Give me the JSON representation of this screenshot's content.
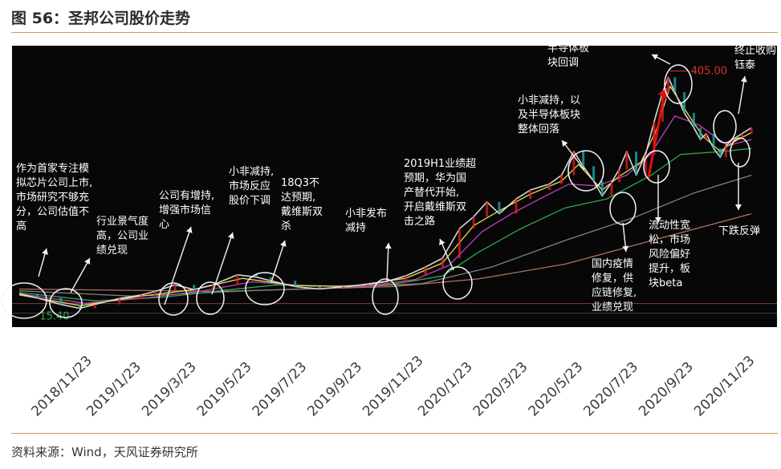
{
  "figure": {
    "title": "图 56：圣邦公司股价走势",
    "source": "资料来源：Wind，天风证券研究所"
  },
  "chart_data": {
    "type": "line",
    "title": "图 56：圣邦公司股价走势",
    "xlabel": "",
    "ylabel": "",
    "x_ticks": [
      "2018/11/23",
      "2019/1/23",
      "2019/3/23",
      "2019/5/23",
      "2019/7/23",
      "2019/9/23",
      "2019/11/23",
      "2020/1/23",
      "2020/3/23",
      "2020/5/23",
      "2020/7/23",
      "2020/9/23",
      "2020/11/23"
    ],
    "x_range": [
      "2018-11-01",
      "2020-12-31"
    ],
    "ylim": [
      0,
      430
    ],
    "price_labels": {
      "min": "15.40",
      "max": "405.00"
    },
    "series": [
      {
        "color": "#d8d8d8",
        "points": [
          [
            "2018-11-01",
            40
          ],
          [
            "2018-11-20",
            33
          ],
          [
            "2018-12-15",
            22
          ],
          [
            "2019-01-04",
            15.4
          ],
          [
            "2019-01-20",
            22
          ],
          [
            "2019-02-15",
            32
          ],
          [
            "2019-03-10",
            38
          ],
          [
            "2019-03-25",
            44
          ],
          [
            "2019-04-15",
            55
          ],
          [
            "2019-05-05",
            47
          ],
          [
            "2019-05-25",
            55
          ],
          [
            "2019-06-20",
            72
          ],
          [
            "2019-07-10",
            68
          ],
          [
            "2019-07-25",
            62
          ],
          [
            "2019-08-20",
            52
          ],
          [
            "2019-09-15",
            48
          ],
          [
            "2019-10-10",
            52
          ],
          [
            "2019-11-05",
            56
          ],
          [
            "2019-11-23",
            60
          ],
          [
            "2019-12-15",
            70
          ],
          [
            "2020-01-05",
            85
          ],
          [
            "2020-01-23",
            100
          ],
          [
            "2020-02-10",
            150
          ],
          [
            "2020-02-25",
            170
          ],
          [
            "2020-03-10",
            195
          ],
          [
            "2020-03-23",
            175
          ],
          [
            "2020-04-10",
            200
          ],
          [
            "2020-04-25",
            215
          ],
          [
            "2020-05-15",
            225
          ],
          [
            "2020-05-28",
            240
          ],
          [
            "2020-06-10",
            280
          ],
          [
            "2020-06-20",
            255
          ],
          [
            "2020-07-01",
            230
          ],
          [
            "2020-07-10",
            205
          ],
          [
            "2020-07-20",
            228
          ],
          [
            "2020-07-28",
            250
          ],
          [
            "2020-08-05",
            280
          ],
          [
            "2020-08-15",
            240
          ],
          [
            "2020-08-25",
            275
          ],
          [
            "2020-09-03",
            330
          ],
          [
            "2020-09-12",
            380
          ],
          [
            "2020-09-18",
            405
          ],
          [
            "2020-09-25",
            380
          ],
          [
            "2020-10-05",
            345
          ],
          [
            "2020-10-15",
            320
          ],
          [
            "2020-10-22",
            300
          ],
          [
            "2020-10-28",
            310
          ],
          [
            "2020-11-05",
            285
          ],
          [
            "2020-11-12",
            270
          ],
          [
            "2020-11-18",
            290
          ],
          [
            "2020-11-25",
            300
          ],
          [
            "2020-12-05",
            310
          ],
          [
            "2020-12-15",
            320
          ]
        ]
      },
      {
        "color": "#e8e04a",
        "points": [
          [
            "2018-11-01",
            38
          ],
          [
            "2019-01-05",
            20
          ],
          [
            "2019-03-10",
            36
          ],
          [
            "2019-05-05",
            47
          ],
          [
            "2019-06-25",
            66
          ],
          [
            "2019-08-20",
            54
          ],
          [
            "2019-10-15",
            52
          ],
          [
            "2019-12-15",
            66
          ],
          [
            "2020-01-23",
            92
          ],
          [
            "2020-02-25",
            155
          ],
          [
            "2020-03-23",
            180
          ],
          [
            "2020-04-25",
            208
          ],
          [
            "2020-05-28",
            230
          ],
          [
            "2020-06-15",
            258
          ],
          [
            "2020-07-10",
            215
          ],
          [
            "2020-07-28",
            238
          ],
          [
            "2020-08-20",
            262
          ],
          [
            "2020-09-05",
            315
          ],
          [
            "2020-09-20",
            390
          ],
          [
            "2020-10-10",
            340
          ],
          [
            "2020-10-25",
            305
          ],
          [
            "2020-11-12",
            280
          ],
          [
            "2020-11-25",
            295
          ],
          [
            "2020-12-15",
            312
          ]
        ]
      },
      {
        "color": "#c040c0",
        "points": [
          [
            "2018-11-01",
            40
          ],
          [
            "2019-01-10",
            24
          ],
          [
            "2019-03-15",
            33
          ],
          [
            "2019-05-15",
            45
          ],
          [
            "2019-07-05",
            60
          ],
          [
            "2019-09-05",
            53
          ],
          [
            "2019-11-05",
            53
          ],
          [
            "2019-12-25",
            64
          ],
          [
            "2020-01-30",
            88
          ],
          [
            "2020-03-05",
            145
          ],
          [
            "2020-04-05",
            175
          ],
          [
            "2020-05-05",
            200
          ],
          [
            "2020-06-05",
            225
          ],
          [
            "2020-07-05",
            222
          ],
          [
            "2020-08-05",
            240
          ],
          [
            "2020-08-30",
            275
          ],
          [
            "2020-09-25",
            340
          ],
          [
            "2020-10-20",
            325
          ],
          [
            "2020-11-20",
            290
          ],
          [
            "2020-12-15",
            300
          ]
        ]
      },
      {
        "color": "#2ea84a",
        "points": [
          [
            "2018-11-01",
            42
          ],
          [
            "2019-01-20",
            28
          ],
          [
            "2019-04-01",
            34
          ],
          [
            "2019-06-01",
            45
          ],
          [
            "2019-08-01",
            55
          ],
          [
            "2019-10-01",
            53
          ],
          [
            "2019-12-01",
            56
          ],
          [
            "2020-01-23",
            70
          ],
          [
            "2020-03-01",
            110
          ],
          [
            "2020-04-15",
            150
          ],
          [
            "2020-06-01",
            185
          ],
          [
            "2020-07-15",
            200
          ],
          [
            "2020-08-31",
            240
          ],
          [
            "2020-10-01",
            275
          ],
          [
            "2020-11-15",
            280
          ],
          [
            "2020-12-15",
            285
          ]
        ]
      },
      {
        "color": "#808080",
        "points": [
          [
            "2018-11-01",
            45
          ],
          [
            "2019-03-01",
            36
          ],
          [
            "2019-07-01",
            45
          ],
          [
            "2019-10-01",
            50
          ],
          [
            "2020-01-01",
            57
          ],
          [
            "2020-03-15",
            85
          ],
          [
            "2020-06-01",
            130
          ],
          [
            "2020-08-15",
            170
          ],
          [
            "2020-10-15",
            210
          ],
          [
            "2020-12-15",
            240
          ]
        ]
      },
      {
        "color": "#b07060",
        "points": [
          [
            "2018-11-01",
            48
          ],
          [
            "2019-06-01",
            44
          ],
          [
            "2019-12-01",
            52
          ],
          [
            "2020-03-01",
            65
          ],
          [
            "2020-06-01",
            90
          ],
          [
            "2020-09-01",
            130
          ],
          [
            "2020-12-15",
            175
          ]
        ]
      }
    ],
    "annotations": [
      {
        "text": [
          "作为首家专注模",
          "拟芯片公司上市,",
          "市场研究不够充",
          "分，公司估值不",
          "高"
        ],
        "date": "2018-11-05",
        "value": 30
      },
      {
        "text": [
          "行业景气度",
          "高，公司业",
          "绩兑现"
        ],
        "date": "2019-01-05",
        "value": 24
      },
      {
        "text": [
          "公司有增持,",
          "增强市场信",
          "心"
        ],
        "date": "2019-03-25",
        "value": 38
      },
      {
        "text": [
          "小非减持,",
          "市场反应",
          "股价下调"
        ],
        "date": "2019-05-25",
        "value": 52
      },
      {
        "text": [
          "18Q3不",
          "达预期,",
          "戴维斯双",
          "杀"
        ],
        "date": "2019-07-05",
        "value": 55
      },
      {
        "text": [
          "小非发布",
          "减持"
        ],
        "date": "2019-11-20",
        "value": 54
      },
      {
        "text": [
          "2019H1业绩超",
          "预期，华为国",
          "产替代开始,",
          "开启戴维斯双",
          "击之路"
        ],
        "date": "2020-01-05",
        "value": 65
      },
      {
        "text": [
          "小非减持，以",
          "及半导体板块",
          "整体回落"
        ],
        "date": "2020-06-10",
        "value": 280
      },
      {
        "text": [
          "半导体板",
          "块回调"
        ],
        "date": "2020-09-18",
        "value": 405
      },
      {
        "text": [
          "国内疫情",
          "修复，供",
          "应链修复,",
          "业绩兑现"
        ],
        "date": "2020-07-10",
        "value": 215
      },
      {
        "text": [
          "流动性宽",
          "松，市场",
          "风险偏好",
          "提升，板",
          "块beta"
        ],
        "date": "2020-08-25",
        "value": 275
      },
      {
        "text": [
          "终止收购",
          "钰泰"
        ],
        "date": "2020-11-10",
        "value": 300
      },
      {
        "text": [
          "下跌反弹"
        ],
        "date": "2020-11-15",
        "value": 265
      }
    ]
  }
}
